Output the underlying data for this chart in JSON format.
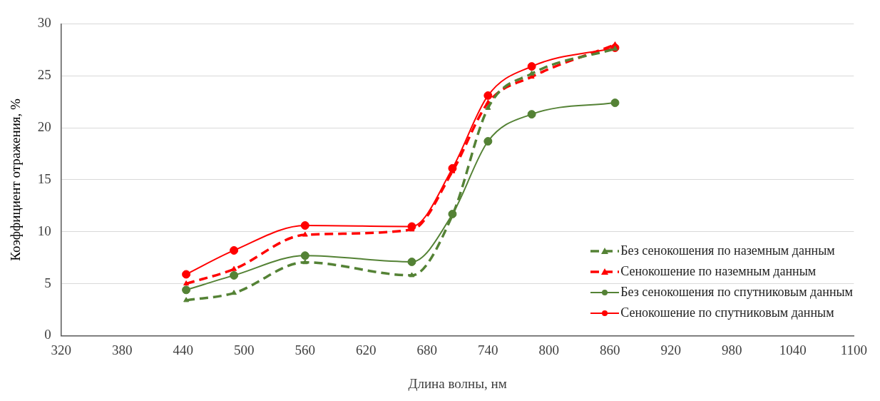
{
  "chart_data": {
    "type": "line",
    "xlabel": "Длина волны, нм",
    "ylabel": "Коэффициент отражения, %",
    "x": [
      443,
      490,
      560,
      665,
      705,
      740,
      783,
      865
    ],
    "xlim": [
      320,
      1100
    ],
    "xticks": [
      320,
      380,
      440,
      500,
      560,
      620,
      680,
      740,
      800,
      860,
      920,
      980,
      1040,
      1100
    ],
    "ylim": [
      0,
      30
    ],
    "yticks": [
      0,
      5,
      10,
      15,
      20,
      25,
      30
    ],
    "grid": "y",
    "legend": "bottom right",
    "series": [
      {
        "name": "Без сенокошения по наземным данным",
        "color": "#548235",
        "line_style": "dashed",
        "marker": "triangle",
        "values": [
          3.4,
          4.1,
          7.05,
          5.8,
          11.6,
          21.9,
          25.2,
          27.6
        ]
      },
      {
        "name": "Сенокошение по наземным данным",
        "color": "#ff0000",
        "line_style": "dashed",
        "marker": "triangle",
        "values": [
          5.0,
          6.4,
          9.7,
          10.2,
          15.8,
          22.4,
          24.9,
          28.0
        ]
      },
      {
        "name": "Без сенокошения по спутниковым данным",
        "color": "#548235",
        "line_style": "solid",
        "marker": "circle",
        "values": [
          4.4,
          5.8,
          7.7,
          7.1,
          11.7,
          18.7,
          21.3,
          22.4
        ]
      },
      {
        "name": "Сенокошение по спутниковым данным",
        "color": "#ff0000",
        "line_style": "solid",
        "marker": "circle",
        "values": [
          5.9,
          8.2,
          10.6,
          10.5,
          16.1,
          23.1,
          25.9,
          27.7
        ]
      }
    ]
  }
}
